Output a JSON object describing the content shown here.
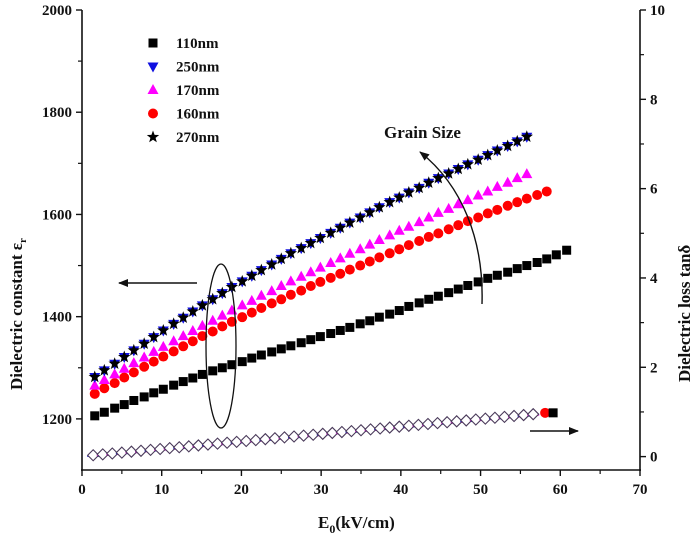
{
  "chart_data": {
    "type": "scatter",
    "title": "",
    "xlabel": "E0(kV/cm)",
    "xlabel_main": "E",
    "xlabel_sub": "0",
    "xlabel_rest": "(kV/cm)",
    "ylabel": "Dielectric constant εr",
    "ylabel_main": "Dielectric constant  ε",
    "ylabel_sub": "r",
    "y2label": "Dielectric loss tanδ",
    "xlim": [
      0,
      70
    ],
    "ylim": [
      1100,
      2000
    ],
    "y2lim": [
      -0.3,
      10
    ],
    "xticks": [
      0,
      10,
      20,
      30,
      40,
      50,
      60,
      70
    ],
    "yticks": [
      1200,
      1400,
      1600,
      1800,
      2000
    ],
    "y2ticks": [
      0,
      2,
      4,
      6,
      8,
      10
    ],
    "grid": false,
    "legend_position": "top-left",
    "legend": [
      {
        "name": "110nm",
        "marker": "square",
        "color": "#000000"
      },
      {
        "name": "250nm",
        "marker": "triangle-down",
        "color": "#1010e0"
      },
      {
        "name": "170nm",
        "marker": "triangle-up",
        "color": "#ff00ff"
      },
      {
        "name": "160nm",
        "marker": "circle",
        "color": "#ff0000"
      },
      {
        "name": "270nm",
        "marker": "star",
        "color": "#000000"
      }
    ],
    "series": [
      {
        "name": "110nm",
        "axis": "left",
        "marker": "square",
        "color": "#000000",
        "x": [
          1.6,
          2.8,
          4.1,
          5.3,
          6.5,
          7.8,
          9.0,
          10.2,
          11.5,
          12.7,
          13.9,
          15.1,
          16.4,
          17.6,
          18.8,
          20.1,
          21.3,
          22.5,
          23.8,
          25.0,
          26.2,
          27.5,
          28.7,
          29.9,
          31.2,
          32.4,
          33.6,
          34.9,
          36.1,
          37.3,
          38.6,
          39.8,
          41.0,
          42.3,
          43.5,
          44.7,
          46.0,
          47.2,
          48.4,
          49.7,
          50.9,
          52.1,
          53.4,
          54.6,
          55.8,
          57.1,
          58.3,
          59.5,
          60.8
        ],
        "y": [
          1206,
          1213,
          1221,
          1228,
          1236,
          1243,
          1251,
          1258,
          1266,
          1273,
          1280,
          1287,
          1294,
          1300,
          1306,
          1312,
          1319,
          1325,
          1331,
          1337,
          1343,
          1349,
          1355,
          1361,
          1367,
          1373,
          1379,
          1386,
          1392,
          1399,
          1405,
          1412,
          1420,
          1427,
          1434,
          1440,
          1447,
          1454,
          1461,
          1468,
          1475,
          1481,
          1487,
          1494,
          1500,
          1506,
          1513,
          1521,
          1530
        ]
      },
      {
        "name": "250nm",
        "axis": "left",
        "marker": "triangle-down",
        "color": "#1010e0",
        "x": [
          1.6,
          2.8,
          4.1,
          5.3,
          6.5,
          7.8,
          9.0,
          10.2,
          11.5,
          12.7,
          13.9,
          15.1,
          16.4,
          17.6,
          18.8,
          20.1,
          21.3,
          22.5,
          23.8,
          25.0,
          26.2,
          27.5,
          28.7,
          29.9,
          31.2,
          32.4,
          33.6,
          34.9,
          36.1,
          37.3,
          38.6,
          39.8,
          41.0,
          42.3,
          43.5,
          44.7,
          46.0,
          47.2,
          48.4,
          49.7,
          50.9,
          52.1,
          53.4,
          54.6,
          55.8
        ],
        "y": [
          1282,
          1295,
          1308,
          1321,
          1334,
          1347,
          1360,
          1373,
          1386,
          1398,
          1410,
          1422,
          1434,
          1446,
          1458,
          1469,
          1480,
          1491,
          1502,
          1513,
          1524,
          1534,
          1544,
          1554,
          1564,
          1574,
          1584,
          1594,
          1604,
          1614,
          1624,
          1633,
          1643,
          1652,
          1662,
          1671,
          1680,
          1689,
          1698,
          1707,
          1716,
          1725,
          1734,
          1743,
          1752
        ]
      },
      {
        "name": "170nm",
        "axis": "left",
        "marker": "triangle-up",
        "color": "#ff00ff",
        "x": [
          1.6,
          2.8,
          4.1,
          5.3,
          6.5,
          7.8,
          9.0,
          10.2,
          11.5,
          12.7,
          13.9,
          15.1,
          16.4,
          17.6,
          18.8,
          20.1,
          21.3,
          22.5,
          23.8,
          25.0,
          26.2,
          27.5,
          28.7,
          29.9,
          31.2,
          32.4,
          33.6,
          34.9,
          36.1,
          37.3,
          38.6,
          39.8,
          41.0,
          42.3,
          43.5,
          44.7,
          46.0,
          47.2,
          48.4,
          49.7,
          50.9,
          52.1,
          53.4,
          54.6,
          55.8
        ],
        "y": [
          1265,
          1276,
          1287,
          1298,
          1309,
          1320,
          1331,
          1341,
          1352,
          1362,
          1372,
          1382,
          1392,
          1402,
          1412,
          1422,
          1431,
          1441,
          1450,
          1460,
          1469,
          1478,
          1487,
          1496,
          1505,
          1514,
          1523,
          1532,
          1541,
          1550,
          1559,
          1568,
          1576,
          1585,
          1594,
          1603,
          1611,
          1620,
          1628,
          1637,
          1645,
          1654,
          1662,
          1671,
          1679
        ]
      },
      {
        "name": "160nm",
        "axis": "left",
        "marker": "circle",
        "color": "#ff0000",
        "x": [
          1.6,
          2.8,
          4.1,
          5.3,
          6.5,
          7.8,
          9.0,
          10.2,
          11.5,
          12.7,
          13.9,
          15.1,
          16.4,
          17.6,
          18.8,
          20.1,
          21.3,
          22.5,
          23.8,
          25.0,
          26.2,
          27.5,
          28.7,
          29.9,
          31.2,
          32.4,
          33.6,
          34.9,
          36.1,
          37.3,
          38.6,
          39.8,
          41.0,
          42.3,
          43.5,
          44.7,
          46.0,
          47.2,
          48.4,
          49.7,
          50.9,
          52.1,
          53.4,
          54.6,
          55.8,
          57.1,
          58.3
        ],
        "y": [
          1249,
          1260,
          1270,
          1281,
          1291,
          1302,
          1312,
          1322,
          1332,
          1342,
          1352,
          1362,
          1371,
          1381,
          1390,
          1399,
          1408,
          1417,
          1426,
          1434,
          1443,
          1451,
          1460,
          1468,
          1476,
          1484,
          1492,
          1500,
          1508,
          1516,
          1524,
          1532,
          1540,
          1548,
          1556,
          1563,
          1571,
          1579,
          1587,
          1594,
          1602,
          1609,
          1617,
          1624,
          1631,
          1638,
          1645
        ]
      },
      {
        "name": "270nm",
        "axis": "left",
        "marker": "star",
        "color": "#000000",
        "x": [
          1.6,
          2.8,
          4.1,
          5.3,
          6.5,
          7.8,
          9.0,
          10.2,
          11.5,
          12.7,
          13.9,
          15.1,
          16.4,
          17.6,
          18.8,
          20.1,
          21.3,
          22.5,
          23.8,
          25.0,
          26.2,
          27.5,
          28.7,
          29.9,
          31.2,
          32.4,
          33.6,
          34.9,
          36.1,
          37.3,
          38.6,
          39.8,
          41.0,
          42.3,
          43.5,
          44.7,
          46.0,
          47.2,
          48.4,
          49.7,
          50.9,
          52.1,
          53.4,
          54.6,
          55.8
        ],
        "y": [
          1282,
          1295,
          1308,
          1321,
          1334,
          1347,
          1360,
          1373,
          1386,
          1398,
          1410,
          1422,
          1434,
          1446,
          1458,
          1469,
          1480,
          1491,
          1502,
          1513,
          1524,
          1534,
          1544,
          1554,
          1564,
          1574,
          1584,
          1594,
          1604,
          1614,
          1624,
          1633,
          1643,
          1652,
          1662,
          1671,
          1680,
          1689,
          1698,
          1707,
          1716,
          1725,
          1734,
          1743,
          1752
        ]
      },
      {
        "name": "tanδ (all samples, hollow)",
        "axis": "right",
        "marker": "hollow-diamond",
        "color": "#000000",
        "x": [
          1.4,
          2.6,
          3.8,
          5.0,
          6.2,
          7.4,
          8.6,
          9.8,
          11.0,
          12.2,
          13.4,
          14.6,
          15.8,
          17.0,
          18.2,
          19.4,
          20.6,
          21.8,
          23.0,
          24.2,
          25.4,
          26.6,
          27.8,
          29.0,
          30.2,
          31.4,
          32.6,
          33.8,
          35.0,
          36.2,
          37.4,
          38.6,
          39.8,
          41.0,
          42.2,
          43.4,
          44.6,
          45.8,
          47.0,
          48.2,
          49.4,
          50.6,
          51.8,
          53.0,
          54.2,
          55.4,
          56.6
        ],
        "y": [
          0.03,
          0.05,
          0.07,
          0.09,
          0.11,
          0.13,
          0.15,
          0.17,
          0.19,
          0.21,
          0.23,
          0.25,
          0.27,
          0.29,
          0.31,
          0.33,
          0.35,
          0.37,
          0.39,
          0.41,
          0.43,
          0.45,
          0.47,
          0.49,
          0.51,
          0.53,
          0.55,
          0.57,
          0.59,
          0.61,
          0.63,
          0.65,
          0.67,
          0.69,
          0.71,
          0.73,
          0.75,
          0.77,
          0.79,
          0.81,
          0.83,
          0.85,
          0.87,
          0.89,
          0.91,
          0.93,
          0.95
        ]
      },
      {
        "name": "tanδ 160nm end",
        "axis": "right",
        "marker": "circle",
        "color": "#ff0000",
        "x": [
          58.1
        ],
        "y": [
          0.98
        ]
      },
      {
        "name": "tanδ 110nm end",
        "axis": "right",
        "marker": "square",
        "color": "#000000",
        "x": [
          59.1
        ],
        "y": [
          0.98
        ]
      }
    ],
    "annotations": [
      {
        "type": "text",
        "text": "Grain Size"
      },
      {
        "type": "curved-arrow",
        "meaning": "increasing grain size",
        "direction": "up-left"
      },
      {
        "type": "ellipse",
        "meaning": "group of ε curves"
      },
      {
        "type": "arrow",
        "direction": "left",
        "meaning": "ε curves belong to left axis"
      },
      {
        "type": "arrow",
        "direction": "right",
        "meaning": "tanδ curves belong to right axis"
      }
    ]
  }
}
